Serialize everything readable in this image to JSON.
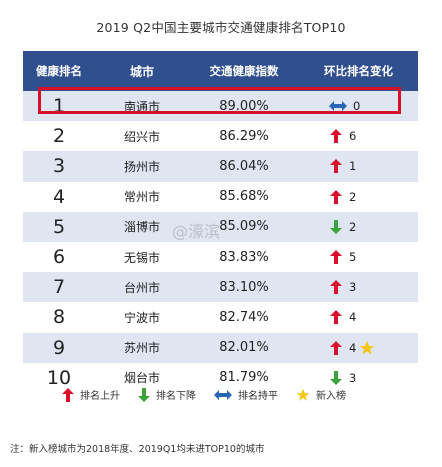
{
  "title": "2019 Q2中国主要城市交通健康排名TOP10",
  "columns": [
    "健康排名",
    "城市",
    "交通健康指数",
    "环比排名变化"
  ],
  "rows": [
    {
      "rank": "1",
      "city": "南通市",
      "index": "89.00%",
      "change": "0",
      "dir": "flat",
      "new": false
    },
    {
      "rank": "2",
      "city": "绍兴市",
      "index": "86.29%",
      "change": "6",
      "dir": "up",
      "new": false
    },
    {
      "rank": "3",
      "city": "扬州市",
      "index": "86.04%",
      "change": "1",
      "dir": "up",
      "new": false
    },
    {
      "rank": "4",
      "city": "常州市",
      "index": "85.68%",
      "change": "2",
      "dir": "up",
      "new": false
    },
    {
      "rank": "5",
      "city": "淄博市",
      "index": "85.09%",
      "change": "2",
      "dir": "down",
      "new": false
    },
    {
      "rank": "6",
      "city": "无锡市",
      "index": "83.83%",
      "change": "5",
      "dir": "up",
      "new": false
    },
    {
      "rank": "7",
      "city": "台州市",
      "index": "83.10%",
      "change": "3",
      "dir": "up",
      "new": false
    },
    {
      "rank": "8",
      "city": "宁波市",
      "index": "82.74%",
      "change": "4",
      "dir": "up",
      "new": false
    },
    {
      "rank": "9",
      "city": "苏州市",
      "index": "82.01%",
      "change": "4",
      "dir": "up",
      "new": true
    },
    {
      "rank": "10",
      "city": "烟台市",
      "index": "81.79%",
      "change": "3",
      "dir": "down",
      "new": false
    }
  ],
  "legend": {
    "up": "排名上升",
    "down": "排名下降",
    "flat": "排名持平",
    "new": "新入榜"
  },
  "note": "注：新入榜城市为2018年度、2019Q1均未进TOP10的城市",
  "watermark": "@濠滨",
  "colors": {
    "header": "#2f4f8f",
    "row_alt": "#dfe6f2",
    "up": "#d8102c",
    "down": "#3aa33a",
    "flat": "#2a66b8",
    "star": "#f5c518",
    "highlight": "#d8102c"
  }
}
